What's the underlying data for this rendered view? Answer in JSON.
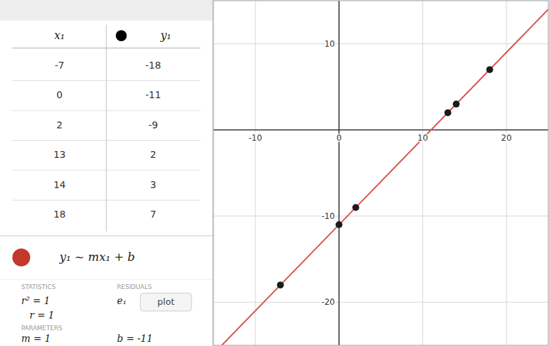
{
  "chart_data": {
    "type": "scatter",
    "series": [
      {
        "type": "scatter",
        "color": "#1a1a1a",
        "x": [
          -7,
          0,
          2,
          13,
          14,
          18
        ],
        "values": [
          -18,
          -11,
          -9,
          2,
          3,
          7
        ]
      },
      {
        "type": "line",
        "color": "#d9534f",
        "x": [
          -14,
          25
        ],
        "values": [
          -25,
          14
        ]
      }
    ],
    "xlim": [
      -15,
      25
    ],
    "ylim": [
      -25,
      15
    ],
    "xticks": [
      -10,
      0,
      10,
      20
    ],
    "yticks": [
      -20,
      -10,
      10
    ],
    "grid": true,
    "annotations": [
      "x₁",
      "y₁",
      "y₁ ~ mx₁ + b",
      "STATISTICS",
      "RESIDUALS",
      "r² = 1",
      "r = 1",
      "e₁",
      "plot",
      "PARAMETERS",
      "m = 1",
      "b = -11"
    ]
  }
}
